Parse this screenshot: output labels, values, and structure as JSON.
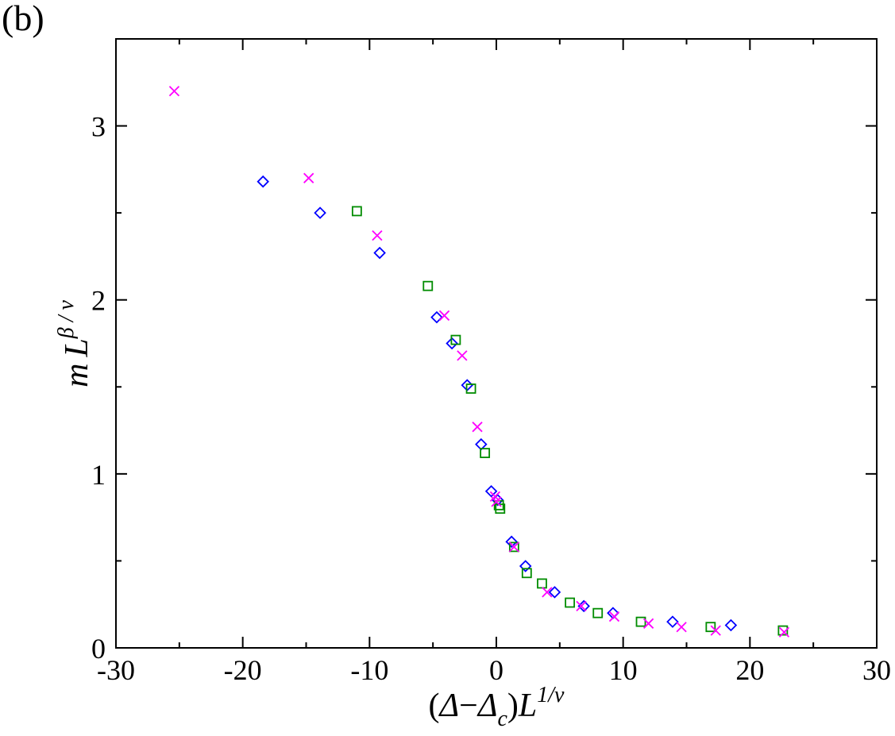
{
  "panel_label": "(b)",
  "chart_data": {
    "type": "scatter",
    "xlabel": {
      "paren_open": "(",
      "delta": "Δ",
      "minus": "−",
      "delta2": "Δ",
      "sub_c": "c",
      "paren_close": ")",
      "L": "L",
      "sup": "1/ν"
    },
    "ylabel": {
      "m": "m",
      "L": "L",
      "sup": "β / ν"
    },
    "xlim": [
      -30,
      30
    ],
    "ylim": [
      0,
      3.5
    ],
    "xticks": [
      -30,
      -20,
      -10,
      0,
      10,
      20,
      30
    ],
    "xtick_labels": [
      "-30",
      "-20",
      "-10",
      "0",
      "10",
      "20",
      "30"
    ],
    "yticks": [
      0,
      1,
      2,
      3
    ],
    "ytick_labels": [
      "0",
      "1",
      "2",
      "3"
    ],
    "grid": false,
    "colors": {
      "diamond": "#0000ff",
      "square": "#008c00",
      "cross": "#ff00ff"
    },
    "series": [
      {
        "marker": "diamond",
        "color": "#0000ff",
        "points": [
          [
            -18.4,
            2.68
          ],
          [
            -13.9,
            2.5
          ],
          [
            -9.2,
            2.27
          ],
          [
            -4.7,
            1.9
          ],
          [
            -3.5,
            1.75
          ],
          [
            -2.3,
            1.51
          ],
          [
            -1.2,
            1.17
          ],
          [
            -0.4,
            0.9
          ],
          [
            0.1,
            0.85
          ],
          [
            1.2,
            0.61
          ],
          [
            2.3,
            0.47
          ],
          [
            4.6,
            0.32
          ],
          [
            6.9,
            0.24
          ],
          [
            9.2,
            0.2
          ],
          [
            13.9,
            0.15
          ],
          [
            18.5,
            0.13
          ]
        ]
      },
      {
        "marker": "square",
        "color": "#008c00",
        "points": [
          [
            -11.0,
            2.51
          ],
          [
            -5.4,
            2.08
          ],
          [
            -3.2,
            1.77
          ],
          [
            -2.0,
            1.49
          ],
          [
            -0.9,
            1.12
          ],
          [
            0.2,
            0.82
          ],
          [
            0.3,
            0.8
          ],
          [
            1.4,
            0.58
          ],
          [
            2.4,
            0.43
          ],
          [
            3.6,
            0.37
          ],
          [
            5.8,
            0.26
          ],
          [
            8.0,
            0.2
          ],
          [
            11.4,
            0.15
          ],
          [
            16.9,
            0.12
          ],
          [
            22.6,
            0.1
          ]
        ]
      },
      {
        "marker": "cross",
        "color": "#ff00ff",
        "points": [
          [
            -25.4,
            3.2
          ],
          [
            -14.8,
            2.7
          ],
          [
            -9.4,
            2.37
          ],
          [
            -4.1,
            1.91
          ],
          [
            -2.7,
            1.68
          ],
          [
            -1.5,
            1.27
          ],
          [
            -0.1,
            0.87
          ],
          [
            0.0,
            0.84
          ],
          [
            1.4,
            0.58
          ],
          [
            4.0,
            0.32
          ],
          [
            6.7,
            0.24
          ],
          [
            9.3,
            0.18
          ],
          [
            12.0,
            0.14
          ],
          [
            14.6,
            0.12
          ],
          [
            17.3,
            0.1
          ],
          [
            22.7,
            0.09
          ]
        ]
      }
    ]
  }
}
